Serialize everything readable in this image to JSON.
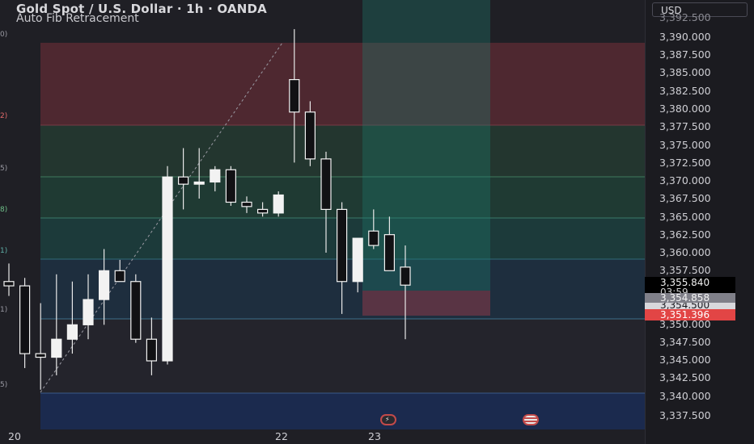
{
  "header": {
    "symbol_title": "Gold Spot / U.S. Dollar · 1h · OANDA",
    "indicator": "Auto Fib Retracement"
  },
  "currency_selector": {
    "label": "USD"
  },
  "price_axis": {
    "ticks": [
      "3,390.000",
      "3,387.500",
      "3,385.000",
      "3,382.500",
      "3,380.000",
      "3,377.500",
      "3,375.000",
      "3,372.500",
      "3,370.000",
      "3,367.500",
      "3,365.000",
      "3,362.500",
      "3,360.000",
      "3,357.500",
      "3,350.000",
      "3,347.500",
      "3,345.000",
      "3,342.500",
      "3,340.000",
      "3,337.500"
    ],
    "top_partial": "3,392.500"
  },
  "price_tags": {
    "last_price": "3,355.840",
    "countdown": "03:59",
    "level_a": "3,354.858",
    "level_b": "3,354.500",
    "level_red": "3,351.396"
  },
  "time_axis": {
    "labels": [
      "20",
      "22",
      "23"
    ]
  },
  "fib_edge_labels": [
    "0)",
    "2)",
    "5)",
    "8)",
    "1)",
    "1)",
    "5)"
  ],
  "colors": {
    "candle_body": "#f2f2f2",
    "candle_wick": "#e8e8e8",
    "zone_red": "#5a2a31",
    "zone_teal": "#1f4a44",
    "zone_blue": "#1c2f52",
    "price_red": "#e24545"
  },
  "chart_data": {
    "type": "candlestick",
    "series": [
      {
        "o": 3356.0,
        "h": 3358.5,
        "l": 3354.0,
        "c": 3355.4
      },
      {
        "o": 3355.4,
        "h": 3356.5,
        "l": 3344.0,
        "c": 3346.0
      },
      {
        "o": 3346.0,
        "h": 3353.0,
        "l": 3341.0,
        "c": 3345.5
      },
      {
        "o": 3345.5,
        "h": 3357.0,
        "l": 3343.0,
        "c": 3348.0
      },
      {
        "o": 3348.0,
        "h": 3356.0,
        "l": 3346.0,
        "c": 3350.0
      },
      {
        "o": 3350.0,
        "h": 3357.0,
        "l": 3348.0,
        "c": 3353.5
      },
      {
        "o": 3353.5,
        "h": 3360.5,
        "l": 3350.0,
        "c": 3357.5
      },
      {
        "o": 3357.5,
        "h": 3359.0,
        "l": 3356.0,
        "c": 3356.0
      },
      {
        "o": 3356.0,
        "h": 3357.0,
        "l": 3347.5,
        "c": 3348.0
      },
      {
        "o": 3348.0,
        "h": 3351.0,
        "l": 3343.0,
        "c": 3345.0
      },
      {
        "o": 3345.0,
        "h": 3372.0,
        "l": 3344.5,
        "c": 3370.5
      },
      {
        "o": 3370.5,
        "h": 3374.5,
        "l": 3366.0,
        "c": 3369.5
      },
      {
        "o": 3369.5,
        "h": 3374.5,
        "l": 3367.5,
        "c": 3369.8
      },
      {
        "o": 3369.8,
        "h": 3372.0,
        "l": 3368.5,
        "c": 3371.5
      },
      {
        "o": 3371.5,
        "h": 3372.0,
        "l": 3366.5,
        "c": 3367.0
      },
      {
        "o": 3367.0,
        "h": 3367.8,
        "l": 3365.5,
        "c": 3366.4
      },
      {
        "o": 3366.0,
        "h": 3367.0,
        "l": 3365.0,
        "c": 3365.5
      },
      {
        "o": 3365.5,
        "h": 3368.5,
        "l": 3365.0,
        "c": 3368.0
      },
      {
        "o": 3384.0,
        "h": 3391.0,
        "l": 3372.5,
        "c": 3379.5
      },
      {
        "o": 3379.5,
        "h": 3381.0,
        "l": 3372.0,
        "c": 3373.0
      },
      {
        "o": 3373.0,
        "h": 3374.0,
        "l": 3360.0,
        "c": 3366.0
      },
      {
        "o": 3366.0,
        "h": 3367.0,
        "l": 3351.5,
        "c": 3356.0
      },
      {
        "o": 3356.0,
        "h": 3362.0,
        "l": 3354.5,
        "c": 3362.0
      },
      {
        "o": 3363.0,
        "h": 3366.0,
        "l": 3360.5,
        "c": 3361.0
      },
      {
        "o": 3362.5,
        "h": 3365.0,
        "l": 3357.5,
        "c": 3357.5
      },
      {
        "o": 3358.0,
        "h": 3361.0,
        "l": 3348.0,
        "c": 3355.5
      }
    ]
  }
}
